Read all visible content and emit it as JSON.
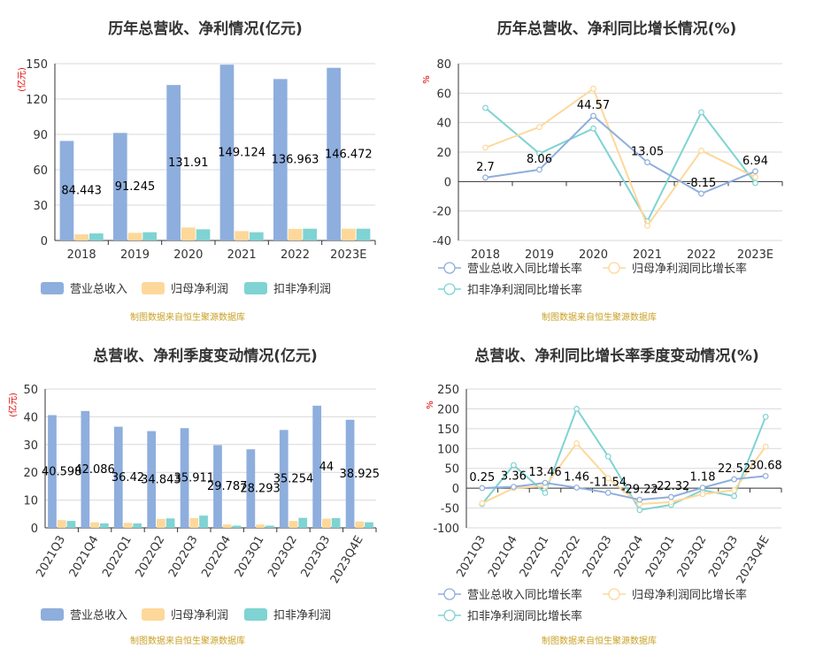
{
  "source_note": "制图数据来自恒生聚源数据库",
  "colors": {
    "revenue": "#8eaedd",
    "net_profit": "#fdd89a",
    "deducted": "#7fd3d3",
    "axis": "#333333",
    "grid": "#d9d9d9"
  },
  "chart_data": [
    {
      "type": "bar",
      "title": "历年总营收、净利情况(亿元)",
      "ylabel": "(亿元)",
      "ylim": [
        0,
        150
      ],
      "yticks": [
        0,
        30,
        60,
        90,
        120,
        150
      ],
      "categories": [
        "2018",
        "2019",
        "2020",
        "2021",
        "2022",
        "2023E"
      ],
      "series": [
        {
          "name": "营业总收入",
          "values": [
            84.443,
            91.245,
            131.91,
            149.124,
            136.963,
            146.472
          ],
          "labels": [
            "84.443",
            "91.245",
            "131.91",
            "149.124",
            "136.963",
            "146.472"
          ],
          "color": "#8eaedd"
        },
        {
          "name": "归母净利润",
          "values": [
            5.2,
            6.5,
            11.0,
            8.0,
            9.8,
            10.0
          ],
          "color": "#fdd89a"
        },
        {
          "name": "扣非净利润",
          "values": [
            6.0,
            7.0,
            9.5,
            7.0,
            10.0,
            10.0
          ],
          "color": "#7fd3d3"
        }
      ],
      "legend": "bottom"
    },
    {
      "type": "line",
      "title": "历年总营收、净利同比增长情况(%)",
      "ylabel": "%",
      "ylim": [
        -40,
        80
      ],
      "yticks": [
        -40,
        -20,
        0,
        20,
        40,
        60,
        80
      ],
      "categories": [
        "2018",
        "2019",
        "2020",
        "2021",
        "2022",
        "2023E"
      ],
      "series": [
        {
          "name": "营业总收入同比增长率",
          "values": [
            2.7,
            8.06,
            44.57,
            13.05,
            -8.15,
            6.94
          ],
          "labels": [
            "2.7",
            "8.06",
            "44.57",
            "13.05",
            "-8.15",
            "6.94"
          ],
          "color": "#8eaedd"
        },
        {
          "name": "归母净利润同比增长率",
          "values": [
            23,
            37,
            63,
            -30,
            21,
            3
          ],
          "color": "#fdd89a"
        },
        {
          "name": "扣非净利润同比增长率",
          "values": [
            50,
            19,
            36,
            -27,
            47,
            -1
          ],
          "color": "#7fd3d3"
        }
      ],
      "legend": "bottom"
    },
    {
      "type": "bar",
      "title": "总营收、净利季度变动情况(亿元)",
      "ylabel": "(亿元)",
      "ylim": [
        0,
        50
      ],
      "yticks": [
        0,
        10,
        20,
        30,
        40,
        50
      ],
      "categories": [
        "2021Q3",
        "2021Q4",
        "2022Q1",
        "2022Q2",
        "2022Q3",
        "2022Q4",
        "2023Q1",
        "2023Q2",
        "2023Q3",
        "2023Q4E"
      ],
      "series": [
        {
          "name": "营业总收入",
          "values": [
            40.598,
            42.086,
            36.42,
            34.843,
            35.911,
            29.787,
            28.293,
            35.254,
            44,
            38.925
          ],
          "labels": [
            "40.598",
            "42.086",
            "36.42",
            "34.843",
            "35.911",
            "29.787",
            "28.293",
            "35.254",
            "44",
            "38.925"
          ],
          "color": "#8eaedd"
        },
        {
          "name": "归母净利润",
          "values": [
            2.8,
            2.0,
            1.8,
            3.2,
            3.5,
            1.2,
            1.2,
            2.5,
            3.3,
            2.3
          ],
          "color": "#fdd89a"
        },
        {
          "name": "扣非净利润",
          "values": [
            2.5,
            1.6,
            1.6,
            3.4,
            4.4,
            0.8,
            0.8,
            3.6,
            3.5,
            2.0
          ],
          "color": "#7fd3d3"
        }
      ],
      "legend": "bottom"
    },
    {
      "type": "line",
      "title": "总营收、净利同比增长率季度变动情况(%)",
      "ylabel": "%",
      "ylim": [
        -100,
        250
      ],
      "yticks": [
        -100,
        -50,
        0,
        50,
        100,
        150,
        200,
        250
      ],
      "categories": [
        "2021Q3",
        "2021Q4",
        "2022Q1",
        "2022Q2",
        "2022Q3",
        "2022Q4",
        "2023Q1",
        "2023Q2",
        "2023Q3",
        "2023Q4E"
      ],
      "series": [
        {
          "name": "营业总收入同比增长率",
          "values": [
            0.25,
            3.36,
            13.46,
            1.46,
            -11.54,
            -29.22,
            -22.32,
            1.18,
            22.52,
            30.68
          ],
          "labels": [
            "0.25",
            "3.36",
            "13.46",
            "1.46",
            "-11.54",
            "-29.22",
            "-22.32",
            "1.18",
            "22.52",
            "30.68"
          ],
          "color": "#8eaedd"
        },
        {
          "name": "归母净利润同比增长率",
          "values": [
            -38,
            0,
            5,
            113,
            25,
            -40,
            -35,
            -15,
            -5,
            105
          ],
          "color": "#fdd89a"
        },
        {
          "name": "扣非净利润同比增长率",
          "values": [
            -40,
            58,
            -12,
            200,
            80,
            -55,
            -42,
            -5,
            -20,
            180
          ],
          "color": "#7fd3d3"
        }
      ],
      "legend": "bottom"
    }
  ]
}
